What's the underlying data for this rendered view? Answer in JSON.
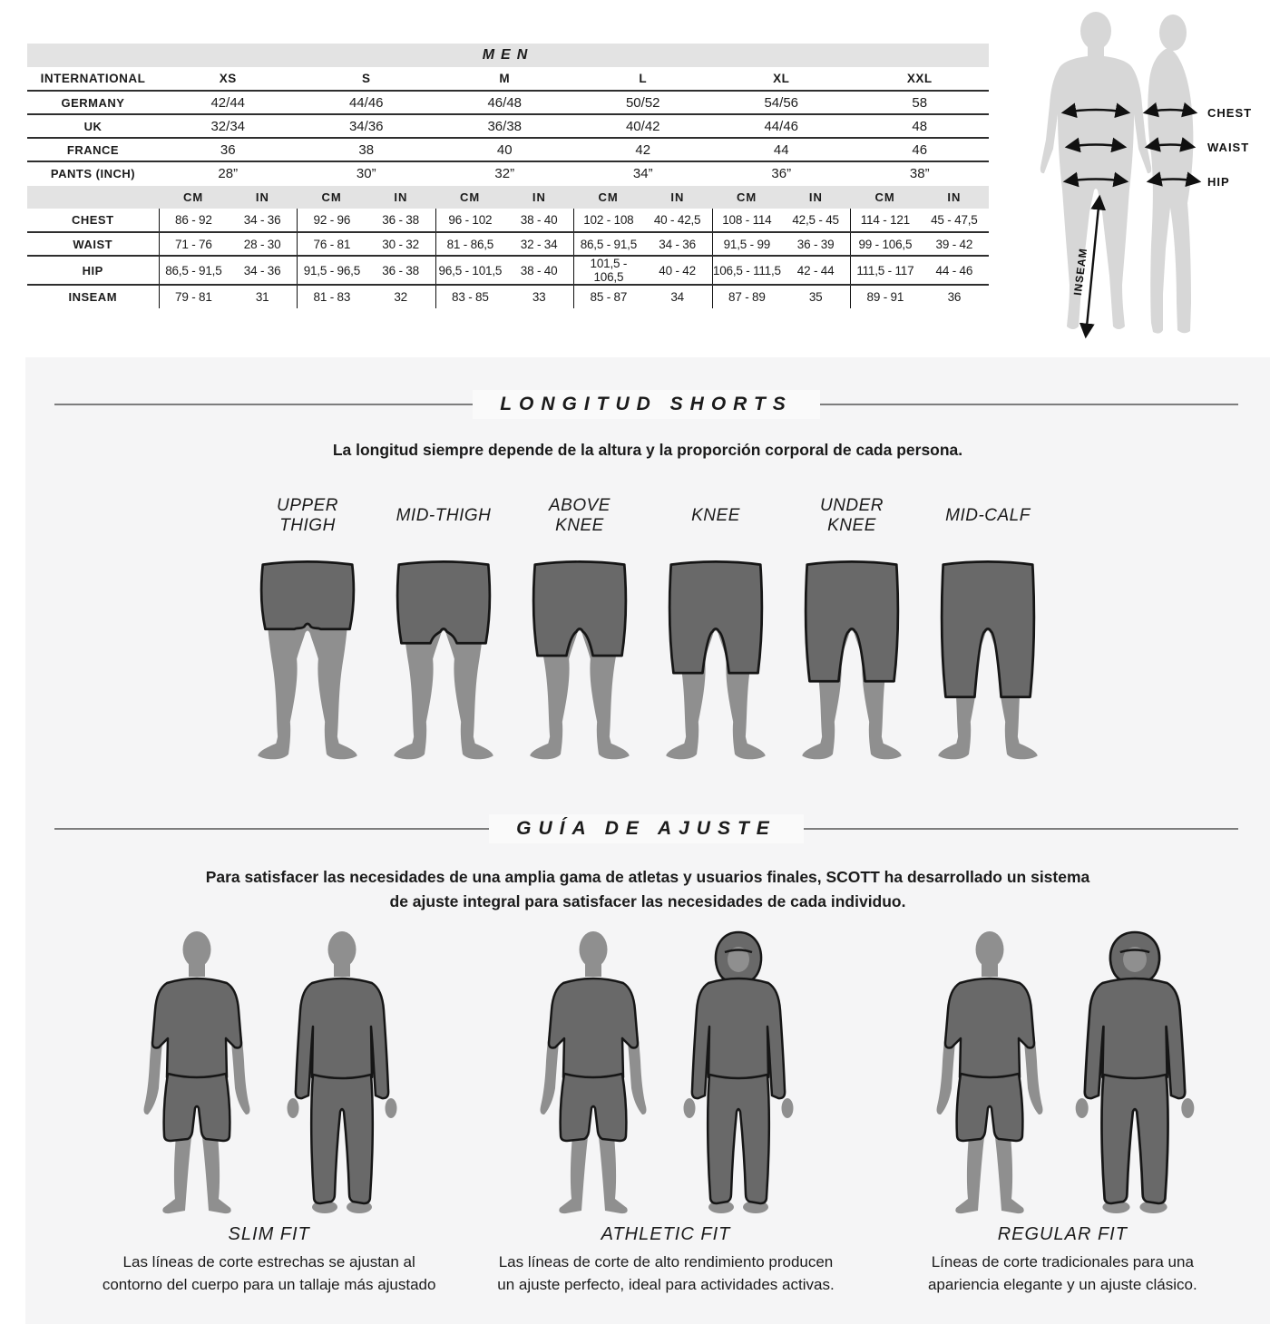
{
  "size_table": {
    "title": "MEN",
    "rows": [
      {
        "label": "INTERNATIONAL",
        "values": [
          "XS",
          "S",
          "M",
          "L",
          "XL",
          "XXL"
        ],
        "head": true
      },
      {
        "label": "GERMANY",
        "values": [
          "42/44",
          "44/46",
          "46/48",
          "50/52",
          "54/56",
          "58"
        ]
      },
      {
        "label": "UK",
        "values": [
          "32/34",
          "34/36",
          "36/38",
          "40/42",
          "44/46",
          "48"
        ]
      },
      {
        "label": "FRANCE",
        "values": [
          "36",
          "38",
          "40",
          "42",
          "44",
          "46"
        ]
      },
      {
        "label": "PANTS (INCH)",
        "values": [
          "28”",
          "30”",
          "32”",
          "34”",
          "36”",
          "38”"
        ]
      }
    ]
  },
  "measurement_table": {
    "unit_cm": "CM",
    "unit_in": "IN",
    "rows": [
      {
        "label": "CHEST",
        "pairs": [
          [
            "86 - 92",
            "34 - 36"
          ],
          [
            "92 - 96",
            "36 - 38"
          ],
          [
            "96 - 102",
            "38 - 40"
          ],
          [
            "102 - 108",
            "40 - 42,5"
          ],
          [
            "108 - 114",
            "42,5 - 45"
          ],
          [
            "114 - 121",
            "45 - 47,5"
          ]
        ]
      },
      {
        "label": "WAIST",
        "pairs": [
          [
            "71 - 76",
            "28 - 30"
          ],
          [
            "76 - 81",
            "30 - 32"
          ],
          [
            "81 - 86,5",
            "32 - 34"
          ],
          [
            "86,5 - 91,5",
            "34 - 36"
          ],
          [
            "91,5 - 99",
            "36 - 39"
          ],
          [
            "99 - 106,5",
            "39 - 42"
          ]
        ]
      },
      {
        "label": "HIP",
        "pairs": [
          [
            "86,5 - 91,5",
            "34 - 36"
          ],
          [
            "91,5 - 96,5",
            "36 - 38"
          ],
          [
            "96,5 - 101,5",
            "38 - 40"
          ],
          [
            "101,5 - 106,5",
            "40 - 42"
          ],
          [
            "106,5 - 111,5",
            "42 - 44"
          ],
          [
            "111,5 - 117",
            "44 - 46"
          ]
        ]
      },
      {
        "label": "INSEAM",
        "pairs": [
          [
            "79 - 81",
            "31"
          ],
          [
            "81 - 83",
            "32"
          ],
          [
            "83 - 85",
            "33"
          ],
          [
            "85 - 87",
            "34"
          ],
          [
            "87 - 89",
            "35"
          ],
          [
            "89 - 91",
            "36"
          ]
        ]
      }
    ]
  },
  "body_diagram": {
    "labels": [
      "CHEST",
      "WAIST",
      "HIP"
    ],
    "inseam": "INSEAM"
  },
  "shorts_section": {
    "title": "LONGITUD SHORTS",
    "subtitle": "La longitud siempre depende de la altura y la proporción corporal de cada persona.",
    "items": [
      {
        "label": "UPPER\nTHIGH",
        "hem": 90
      },
      {
        "label": "MID-THIGH",
        "hem": 107
      },
      {
        "label": "ABOVE\nKNEE",
        "hem": 122
      },
      {
        "label": "KNEE",
        "hem": 143
      },
      {
        "label": "UNDER\nKNEE",
        "hem": 153
      },
      {
        "label": "MID-CALF",
        "hem": 172
      }
    ]
  },
  "fit_section": {
    "title": "GUÍA DE AJUSTE",
    "intro": "Para satisfacer las necesidades de una amplia gama de atletas y usuarios finales, SCOTT ha desarrollado un sistema de ajuste integral para satisfacer las necesidades de cada individuo.",
    "fits": [
      {
        "name": "SLIM FIT",
        "description": "Las líneas de corte estrechas se ajustan al contorno del cuerpo para un tallaje más ajustado",
        "figures": [
          "tshirt-shorts",
          "longsleeve-pants"
        ]
      },
      {
        "name": "ATHLETIC FIT",
        "description": "Las líneas de corte de alto rendimiento producen un ajuste perfecto, ideal para actividades activas.",
        "figures": [
          "tshirt-shorts",
          "hoodie-pants"
        ]
      },
      {
        "name": "REGULAR FIT",
        "description": "Líneas de corte tradicionales para una apariencia elegante y un ajuste clásico.",
        "figures": [
          "tshirt-shorts",
          "hoodie-pants"
        ]
      }
    ]
  },
  "colors": {
    "panel_bg": "#f5f5f6",
    "table_band_bg": "#e3e3e3",
    "heading_band_bg": "#fafafa",
    "rule_line": "#7d7d7d",
    "text": "#1b1b1b",
    "silhouette_light": "#8f8f8f",
    "clothing_dark": "#696969",
    "outline": "#161616",
    "diagram_silhouette": "#d7d7d7"
  }
}
